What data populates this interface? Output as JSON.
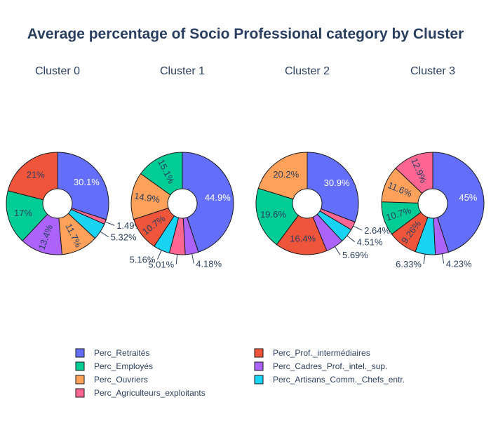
{
  "chart_data": {
    "type": "pie",
    "title": "Average percentage of Socio Professional category by Cluster",
    "hole": true,
    "categories": [
      "Perc_Retraités",
      "Perc_Employés",
      "Perc_Ouvriers",
      "Perc_Agriculteurs_exploitants",
      "Perc_Prof._intermédiaires",
      "Perc_Cadres_Prof._intel._sup.",
      "Perc_Artisans_Comm._Chefs_entr."
    ],
    "colors": {
      "Perc_Retraités": "#636efa",
      "Perc_Employés": "#00cc96",
      "Perc_Ouvriers": "#ffa15a",
      "Perc_Agriculteurs_exploitants": "#ff6692",
      "Perc_Prof._intermédiaires": "#ef553b",
      "Perc_Cadres_Prof._intel._sup.": "#ab63fa",
      "Perc_Artisans_Comm._Chefs_entr.": "#19d3f3"
    },
    "legend": {
      "placement": "bottom",
      "columns": [
        [
          "Perc_Retraités",
          "Perc_Employés",
          "Perc_Ouvriers",
          "Perc_Agriculteurs_exploitants"
        ],
        [
          "Perc_Prof._intermédiaires",
          "Perc_Cadres_Prof._intel._sup.",
          "Perc_Artisans_Comm._Chefs_entr."
        ]
      ]
    },
    "pies": [
      {
        "name": "Cluster 0",
        "slices": [
          {
            "category": "Perc_Retraités",
            "value": 30.1,
            "label": "30.1%"
          },
          {
            "category": "Perc_Agriculteurs_exploitants",
            "value": 1.49,
            "label": "1.49%"
          },
          {
            "category": "Perc_Artisans_Comm._Chefs_entr.",
            "value": 5.32,
            "label": "5.32%"
          },
          {
            "category": "Perc_Ouvriers",
            "value": 11.7,
            "label": "11.7%"
          },
          {
            "category": "Perc_Cadres_Prof._intel._sup.",
            "value": 13.4,
            "label": "13.4%"
          },
          {
            "category": "Perc_Employés",
            "value": 17,
            "label": "17%"
          },
          {
            "category": "Perc_Prof._intermédiaires",
            "value": 21,
            "label": "21%"
          }
        ]
      },
      {
        "name": "Cluster 1",
        "slices": [
          {
            "category": "Perc_Retraités",
            "value": 44.9,
            "label": "44.9%"
          },
          {
            "category": "Perc_Cadres_Prof._intel._sup.",
            "value": 4.18,
            "label": "4.18%"
          },
          {
            "category": "Perc_Agriculteurs_exploitants",
            "value": 5.01,
            "label": "5.01%"
          },
          {
            "category": "Perc_Artisans_Comm._Chefs_entr.",
            "value": 5.16,
            "label": "5.16%"
          },
          {
            "category": "Perc_Prof._intermédiaires",
            "value": 10.7,
            "label": "10.7%"
          },
          {
            "category": "Perc_Ouvriers",
            "value": 14.9,
            "label": "14.9%"
          },
          {
            "category": "Perc_Employés",
            "value": 15.1,
            "label": "15.1%"
          }
        ]
      },
      {
        "name": "Cluster 2",
        "slices": [
          {
            "category": "Perc_Retraités",
            "value": 30.9,
            "label": "30.9%"
          },
          {
            "category": "Perc_Agriculteurs_exploitants",
            "value": 2.64,
            "label": "2.64%"
          },
          {
            "category": "Perc_Artisans_Comm._Chefs_entr.",
            "value": 4.51,
            "label": "4.51%"
          },
          {
            "category": "Perc_Cadres_Prof._intel._sup.",
            "value": 5.69,
            "label": "5.69%"
          },
          {
            "category": "Perc_Prof._intermédiaires",
            "value": 16.4,
            "label": "16.4%"
          },
          {
            "category": "Perc_Employés",
            "value": 19.6,
            "label": "19.6%"
          },
          {
            "category": "Perc_Ouvriers",
            "value": 20.2,
            "label": "20.2%"
          }
        ]
      },
      {
        "name": "Cluster 3",
        "slices": [
          {
            "category": "Perc_Retraités",
            "value": 45,
            "label": "45%"
          },
          {
            "category": "Perc_Cadres_Prof._intel._sup.",
            "value": 4.23,
            "label": "4.23%"
          },
          {
            "category": "Perc_Artisans_Comm._Chefs_entr.",
            "value": 6.33,
            "label": "6.33%"
          },
          {
            "category": "Perc_Prof._intermédiaires",
            "value": 9.26,
            "label": "9.26%"
          },
          {
            "category": "Perc_Employés",
            "value": 10.7,
            "label": "10.7%"
          },
          {
            "category": "Perc_Ouvriers",
            "value": 11.6,
            "label": "11.6%"
          },
          {
            "category": "Perc_Agriculteurs_exploitants",
            "value": 12.9,
            "label": "12.9%"
          }
        ]
      }
    ]
  }
}
